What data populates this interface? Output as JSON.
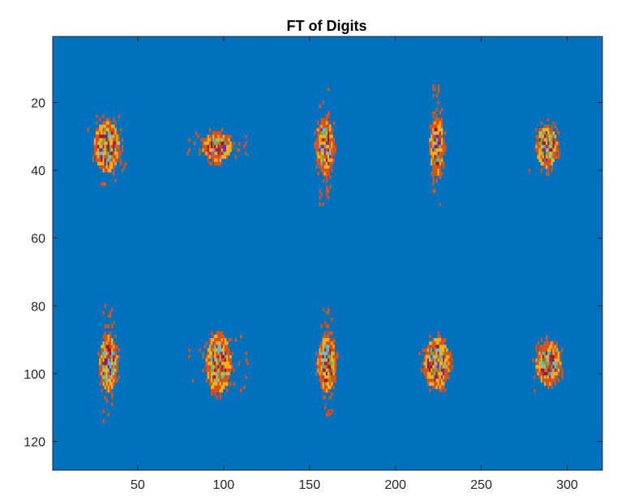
{
  "chart_data": {
    "type": "heatmap",
    "title": "FT of Digits",
    "xlabel": "",
    "ylabel": "",
    "xlim": [
      0.5,
      320.5
    ],
    "ylim": [
      0.5,
      128.5
    ],
    "y_direction": "reverse",
    "grid": false,
    "colorbar": false,
    "x_ticks": [
      50,
      100,
      150,
      200,
      250,
      300
    ],
    "x_tick_labels": [
      "50",
      "100",
      "150",
      "200",
      "250",
      "300"
    ],
    "y_ticks": [
      20,
      40,
      60,
      80,
      100,
      120
    ],
    "y_tick_labels": [
      "20",
      "40",
      "60",
      "80",
      "100",
      "120"
    ],
    "background_color": "#0072BD",
    "colormap": [
      "#0072BD",
      "#D95319",
      "#EDB120",
      "#7E2F8E",
      "#77AC30",
      "#4DBEEE",
      "#A2142F"
    ],
    "blobs": [
      {
        "label": "top-1",
        "x": 32,
        "y": 33,
        "rx": 7,
        "ry": 7,
        "fringe": "ring"
      },
      {
        "label": "top-2",
        "x": 96,
        "y": 33,
        "rx": 8,
        "ry": 4,
        "fringe": "wide"
      },
      {
        "label": "top-3",
        "x": 159,
        "y": 33,
        "rx": 5,
        "ry": 8,
        "fringe": "tall"
      },
      {
        "label": "top-4",
        "x": 224,
        "y": 33,
        "rx": 4,
        "ry": 8,
        "fringe": "tall"
      },
      {
        "label": "top-5",
        "x": 288,
        "y": 33,
        "rx": 6,
        "ry": 6,
        "fringe": "none"
      },
      {
        "label": "bottom-1",
        "x": 33,
        "y": 97,
        "rx": 5,
        "ry": 8,
        "fringe": "tall"
      },
      {
        "label": "bottom-2",
        "x": 97,
        "y": 97,
        "rx": 7,
        "ry": 8,
        "fringe": "wide"
      },
      {
        "label": "bottom-3",
        "x": 160,
        "y": 97,
        "rx": 5,
        "ry": 8,
        "fringe": "tall"
      },
      {
        "label": "bottom-4",
        "x": 224,
        "y": 97,
        "rx": 7,
        "ry": 7,
        "fringe": "none"
      },
      {
        "label": "bottom-5",
        "x": 289,
        "y": 97,
        "rx": 7,
        "ry": 6,
        "fringe": "none"
      }
    ]
  }
}
